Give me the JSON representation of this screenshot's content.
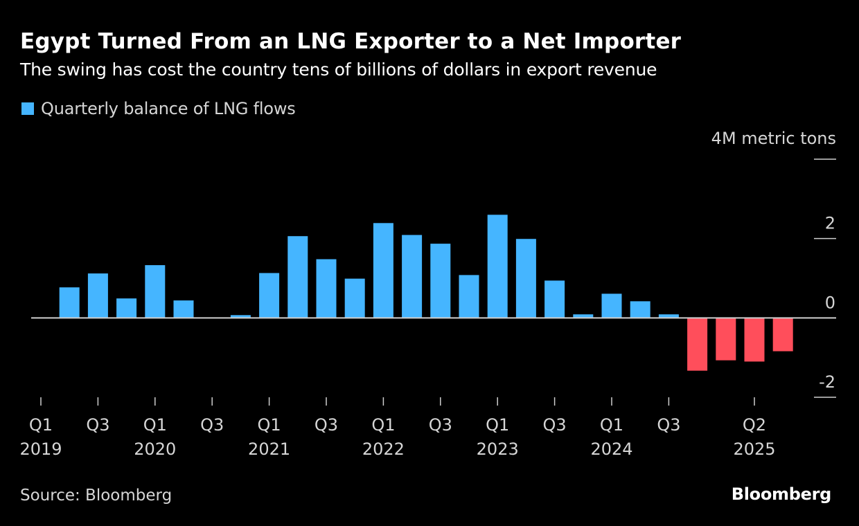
{
  "header": {
    "title": "Egypt Turned From an LNG Exporter to a Net Importer",
    "subtitle": "The swing has cost the country tens of billions of dollars in export revenue"
  },
  "footer": {
    "source": "Source: Bloomberg",
    "brand": "Bloomberg"
  },
  "colors": {
    "background": "#000000",
    "positive": "#45b5ff",
    "negative": "#ff4e5b",
    "axis": "#cfcfcf",
    "text": "#d6d6d6"
  },
  "chart_data": {
    "type": "bar",
    "title": "Egypt Turned From an LNG Exporter to a Net Importer",
    "subtitle": "The swing has cost the country tens of billions of dollars in export revenue",
    "legend": [
      {
        "label": "Quarterly balance of LNG flows",
        "color": "#45b5ff"
      }
    ],
    "legend_position": "top-left",
    "ylabel": "4M metric tons",
    "y_unit_label": "4M metric tons",
    "ylim": [
      -2,
      4
    ],
    "y_ticks": [
      {
        "value": 4,
        "label": ""
      },
      {
        "value": 2,
        "label": "2"
      },
      {
        "value": 0,
        "label": "0"
      },
      {
        "value": -2,
        "label": "-2"
      }
    ],
    "y_axis_side": "right",
    "grid": false,
    "categories": [
      "Q1 2019",
      "Q2 2019",
      "Q3 2019",
      "Q4 2019",
      "Q1 2020",
      "Q2 2020",
      "Q3 2020",
      "Q4 2020",
      "Q1 2021",
      "Q2 2021",
      "Q3 2021",
      "Q4 2021",
      "Q1 2022",
      "Q2 2022",
      "Q3 2022",
      "Q4 2022",
      "Q1 2023",
      "Q2 2023",
      "Q3 2023",
      "Q4 2023",
      "Q1 2024",
      "Q2 2024",
      "Q3 2024",
      "Q4 2024",
      "Q1 2025",
      "Q2 2025",
      "Q3 2025"
    ],
    "series": [
      {
        "name": "Quarterly balance of LNG flows",
        "values": [
          0,
          0.77,
          1.12,
          0.49,
          1.33,
          0.44,
          0,
          0.07,
          1.13,
          2.06,
          1.48,
          0.99,
          2.39,
          2.09,
          1.87,
          1.08,
          2.6,
          1.99,
          0.94,
          0.09,
          0.61,
          0.42,
          0.09,
          -1.33,
          -1.07,
          -1.1,
          -0.84
        ]
      }
    ],
    "x_ticks": [
      {
        "index": 0,
        "quarter": "Q1",
        "year": "2019"
      },
      {
        "index": 2,
        "quarter": "Q3",
        "year": ""
      },
      {
        "index": 4,
        "quarter": "Q1",
        "year": "2020"
      },
      {
        "index": 6,
        "quarter": "Q3",
        "year": ""
      },
      {
        "index": 8,
        "quarter": "Q1",
        "year": "2021"
      },
      {
        "index": 10,
        "quarter": "Q3",
        "year": ""
      },
      {
        "index": 12,
        "quarter": "Q1",
        "year": "2022"
      },
      {
        "index": 14,
        "quarter": "Q3",
        "year": ""
      },
      {
        "index": 16,
        "quarter": "Q1",
        "year": "2023"
      },
      {
        "index": 18,
        "quarter": "Q3",
        "year": ""
      },
      {
        "index": 20,
        "quarter": "Q1",
        "year": "2024"
      },
      {
        "index": 22,
        "quarter": "Q3",
        "year": ""
      },
      {
        "index": 25,
        "quarter": "Q2",
        "year": "2025"
      }
    ]
  }
}
